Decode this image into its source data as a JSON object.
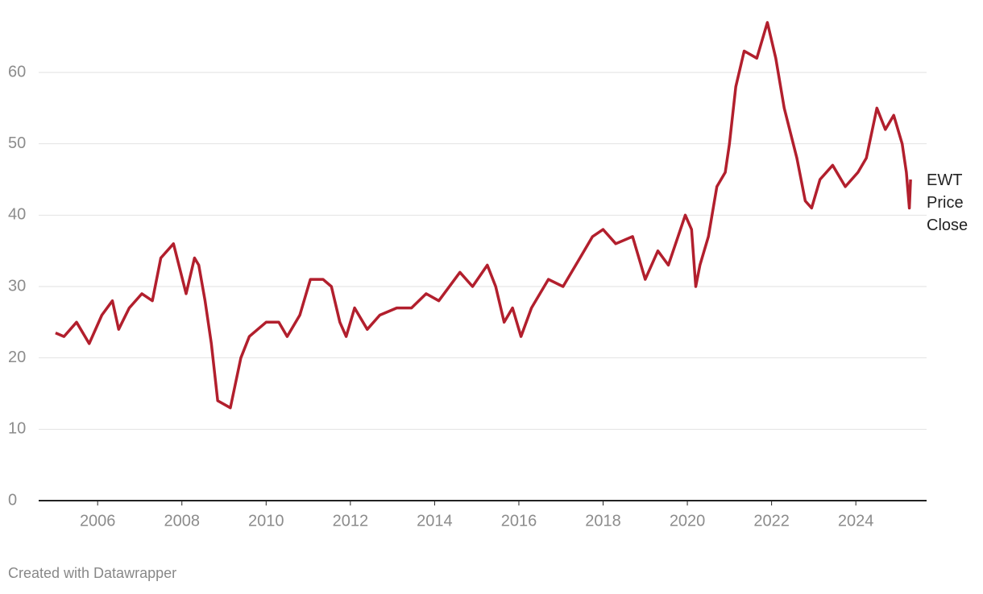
{
  "chart_data": {
    "type": "line",
    "x": [
      2005.0,
      2005.2,
      2005.5,
      2005.8,
      2006.1,
      2006.35,
      2006.5,
      2006.75,
      2007.05,
      2007.3,
      2007.5,
      2007.8,
      2008.1,
      2008.3,
      2008.4,
      2008.55,
      2008.7,
      2008.85,
      2009.15,
      2009.4,
      2009.6,
      2010.0,
      2010.3,
      2010.5,
      2010.8,
      2011.05,
      2011.35,
      2011.55,
      2011.75,
      2011.9,
      2012.1,
      2012.4,
      2012.7,
      2013.1,
      2013.45,
      2013.8,
      2014.1,
      2014.6,
      2014.9,
      2015.25,
      2015.45,
      2015.65,
      2015.85,
      2016.05,
      2016.3,
      2016.7,
      2017.05,
      2017.45,
      2017.75,
      2018.0,
      2018.3,
      2018.7,
      2019.0,
      2019.3,
      2019.55,
      2019.95,
      2020.1,
      2020.2,
      2020.3,
      2020.5,
      2020.7,
      2020.9,
      2021.0,
      2021.15,
      2021.35,
      2021.65,
      2021.9,
      2022.1,
      2022.3,
      2022.6,
      2022.8,
      2022.95,
      2023.15,
      2023.45,
      2023.75,
      2024.05,
      2024.25,
      2024.5,
      2024.7,
      2024.9,
      2025.1,
      2025.2,
      2025.27,
      2025.3
    ],
    "series": [
      {
        "name": "EWT Price Close",
        "color": "#b21f2d",
        "values": [
          23.5,
          23,
          25,
          22,
          26,
          28,
          24,
          27,
          29,
          28,
          34,
          36,
          29,
          34,
          33,
          28,
          22,
          14,
          13,
          20,
          23,
          25,
          25,
          23,
          26,
          31,
          31,
          30,
          25,
          23,
          27,
          24,
          26,
          27,
          27,
          29,
          28,
          32,
          30,
          33,
          30,
          25,
          27,
          23,
          27,
          31,
          30,
          34,
          37,
          38,
          36,
          37,
          31,
          35,
          33,
          40,
          38,
          30,
          33,
          37,
          44,
          46,
          50,
          58,
          63,
          62,
          67,
          62,
          55,
          48,
          42,
          41,
          45,
          47,
          44,
          46,
          48,
          55,
          52,
          54,
          50,
          46,
          41,
          45
        ]
      }
    ],
    "xlim": [
      2004.6,
      2025.68
    ],
    "xticks": [
      2006,
      2008,
      2010,
      2012,
      2014,
      2016,
      2018,
      2020,
      2022,
      2024
    ],
    "ylim": [
      0,
      60
    ],
    "yticks": [
      0,
      10,
      20,
      30,
      40,
      50,
      60
    ],
    "grid": true,
    "source": "Created with Datawrapper"
  }
}
